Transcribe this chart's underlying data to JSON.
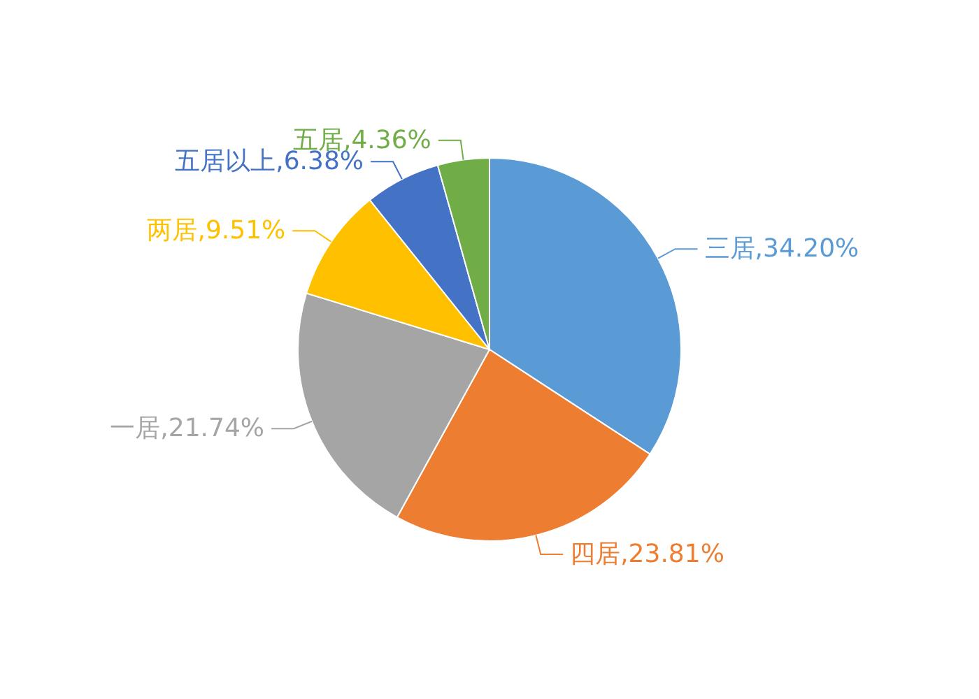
{
  "chart_data": {
    "type": "pie",
    "categories": [
      "三居",
      "四居",
      "一居",
      "两居",
      "五居以上",
      "五居"
    ],
    "values": [
      34.2,
      23.81,
      21.74,
      9.51,
      6.38,
      4.36
    ],
    "value_labels": [
      "34.20%",
      "23.81%",
      "21.74%",
      "9.51%",
      "6.38%",
      "4.36%"
    ],
    "colors": [
      "#5b9bd5",
      "#ed7d31",
      "#a5a5a5",
      "#ffc000",
      "#4472c4",
      "#70ad47"
    ]
  }
}
